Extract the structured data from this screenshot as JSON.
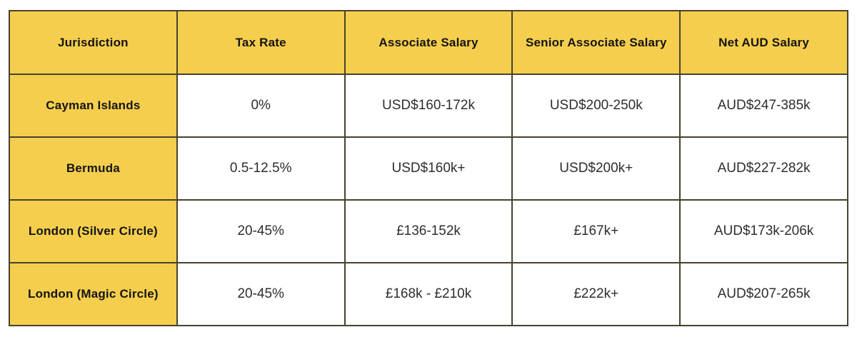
{
  "table": {
    "columns": [
      "Jurisdiction",
      "Tax Rate",
      "Associate Salary",
      "Senior Associate Salary",
      "Net AUD Salary"
    ],
    "rows": [
      [
        "Cayman Islands",
        "0%",
        "USD$160-172k",
        "USD$200-250k",
        "AUD$247-385k"
      ],
      [
        "Bermuda",
        "0.5-12.5%",
        "USD$160k+",
        "USD$200k+",
        "AUD$227-282k"
      ],
      [
        "London (Silver Circle)",
        "20-45%",
        "£136-152k",
        "£167k+",
        "AUD$173k-206k"
      ],
      [
        "London (Magic Circle)",
        "20-45%",
        "£168k - £210k",
        "£222k+",
        "AUD$207-265k"
      ]
    ],
    "colors": {
      "header_background": "#f5ce4d",
      "border": "#46422f",
      "data_text": "#2e2e2e",
      "header_text": "#141414",
      "page_background": "#ffffff"
    }
  }
}
